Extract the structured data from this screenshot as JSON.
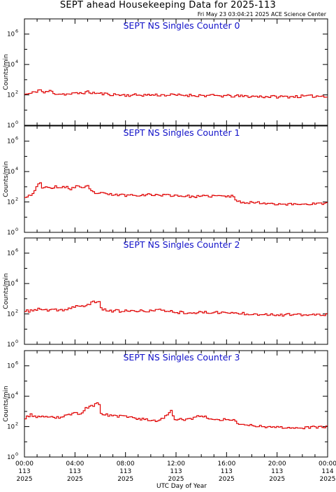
{
  "title": "SEPT ahead Housekeeping Data for 2025-113",
  "timestamp": "Fri May 23 03:04:21 2025 ACE Science Center",
  "colors": {
    "line": "#e00000",
    "panel_title": "#1010c8",
    "axis": "#000000"
  },
  "chart_data": {
    "type": "line",
    "xlabel": "UTC Day of Year",
    "ylabel": "Counts/min",
    "yscale": "log",
    "ylim": [
      1,
      10000000
    ],
    "xlim": [
      0,
      24
    ],
    "x_ticks": [
      {
        "hour": 0,
        "lines": [
          "00:00",
          "113",
          "2025"
        ]
      },
      {
        "hour": 4,
        "lines": [
          "04:00",
          "113",
          "2025"
        ]
      },
      {
        "hour": 8,
        "lines": [
          "08:00",
          "113",
          "2025"
        ]
      },
      {
        "hour": 12,
        "lines": [
          "12:00",
          "113",
          "2025"
        ]
      },
      {
        "hour": 16,
        "lines": [
          "16:00",
          "113",
          "2025"
        ]
      },
      {
        "hour": 20,
        "lines": [
          "20:00",
          "113",
          "2025"
        ]
      },
      {
        "hour": 24,
        "lines": [
          "00:00",
          "114",
          "2025"
        ]
      }
    ],
    "y_ticks": [
      {
        "value": 1,
        "base": "10",
        "exp": "0"
      },
      {
        "value": 100,
        "base": "10",
        "exp": "2"
      },
      {
        "value": 10000,
        "base": "10",
        "exp": "4"
      },
      {
        "value": 1000000,
        "base": "10",
        "exp": "6"
      }
    ],
    "panels": [
      {
        "title": "SEPT NS Singles Counter 0",
        "anchors": [
          [
            0,
            110
          ],
          [
            0.5,
            120
          ],
          [
            1.0,
            180
          ],
          [
            1.2,
            230
          ],
          [
            1.6,
            130
          ],
          [
            2.0,
            190
          ],
          [
            2.5,
            120
          ],
          [
            3.5,
            110
          ],
          [
            5.0,
            150
          ],
          [
            6.0,
            120
          ],
          [
            8.0,
            95
          ],
          [
            10.0,
            100
          ],
          [
            13.0,
            95
          ],
          [
            16.0,
            85
          ],
          [
            18.0,
            80
          ],
          [
            20.0,
            75
          ],
          [
            22.0,
            80
          ],
          [
            24.0,
            85
          ]
        ],
        "jitter": 0.09,
        "seed": 11
      },
      {
        "title": "SEPT NS Singles Counter 1",
        "anchors": [
          [
            0,
            220
          ],
          [
            0.6,
            300
          ],
          [
            1.0,
            1100
          ],
          [
            1.3,
            1700
          ],
          [
            1.5,
            700
          ],
          [
            1.8,
            1300
          ],
          [
            2.1,
            600
          ],
          [
            2.5,
            1100
          ],
          [
            2.9,
            800
          ],
          [
            3.3,
            1000
          ],
          [
            3.7,
            700
          ],
          [
            4.0,
            1000
          ],
          [
            4.3,
            1200
          ],
          [
            4.6,
            700
          ],
          [
            5.0,
            1100
          ],
          [
            5.3,
            500
          ],
          [
            5.6,
            400
          ],
          [
            7.0,
            300
          ],
          [
            8.0,
            280
          ],
          [
            10.0,
            300
          ],
          [
            12.0,
            270
          ],
          [
            13.5,
            220
          ],
          [
            15.0,
            250
          ],
          [
            16.5,
            230
          ],
          [
            17.0,
            100
          ],
          [
            18.5,
            90
          ],
          [
            20.0,
            75
          ],
          [
            21.0,
            70
          ],
          [
            24.0,
            80
          ]
        ],
        "jitter": 0.08,
        "seed": 23
      },
      {
        "title": "SEPT NS Singles Counter 2",
        "anchors": [
          [
            0,
            140
          ],
          [
            1.0,
            200
          ],
          [
            2.0,
            170
          ],
          [
            3.0,
            180
          ],
          [
            3.8,
            260
          ],
          [
            4.2,
            350
          ],
          [
            4.6,
            280
          ],
          [
            5.0,
            420
          ],
          [
            5.5,
            600
          ],
          [
            5.9,
            750
          ],
          [
            6.1,
            200
          ],
          [
            7.0,
            160
          ],
          [
            9.0,
            150
          ],
          [
            11.0,
            180
          ],
          [
            12.0,
            130
          ],
          [
            14.0,
            120
          ],
          [
            15.0,
            130
          ],
          [
            17.0,
            110
          ],
          [
            18.5,
            100
          ],
          [
            20.0,
            90
          ],
          [
            22.0,
            85
          ],
          [
            24.0,
            90
          ]
        ],
        "jitter": 0.09,
        "seed": 37
      },
      {
        "title": "SEPT NS Singles Counter 3",
        "anchors": [
          [
            0,
            350
          ],
          [
            0.5,
            600
          ],
          [
            1.0,
            450
          ],
          [
            2.0,
            380
          ],
          [
            3.0,
            420
          ],
          [
            3.8,
            700
          ],
          [
            4.1,
            1000
          ],
          [
            4.4,
            600
          ],
          [
            4.8,
            1500
          ],
          [
            5.2,
            2000
          ],
          [
            5.6,
            2700
          ],
          [
            5.9,
            3500
          ],
          [
            6.1,
            700
          ],
          [
            7.0,
            500
          ],
          [
            8.0,
            450
          ],
          [
            9.5,
            300
          ],
          [
            10.5,
            240
          ],
          [
            11.2,
            500
          ],
          [
            11.6,
            1200
          ],
          [
            11.9,
            300
          ],
          [
            13.0,
            280
          ],
          [
            14.0,
            600
          ],
          [
            14.5,
            350
          ],
          [
            16.0,
            280
          ],
          [
            16.6,
            280
          ],
          [
            17.0,
            150
          ],
          [
            18.0,
            120
          ],
          [
            20.0,
            90
          ],
          [
            22.0,
            85
          ],
          [
            24.0,
            95
          ]
        ],
        "jitter": 0.08,
        "seed": 53
      }
    ]
  }
}
